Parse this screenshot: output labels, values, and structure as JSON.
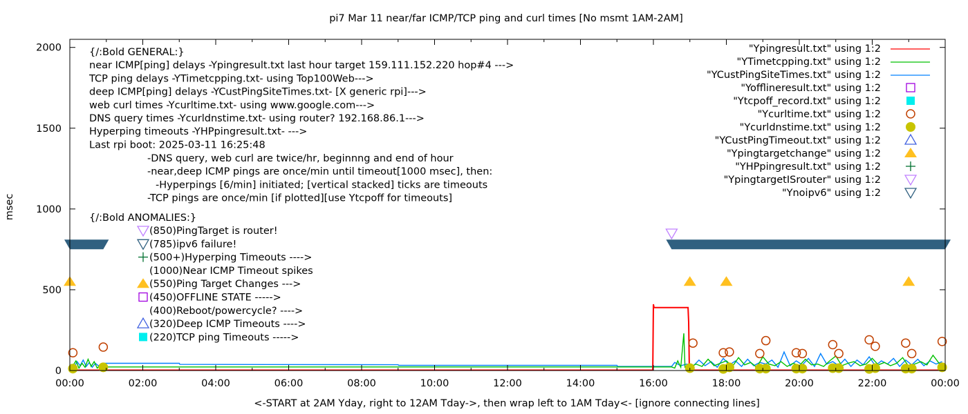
{
  "chart_data": {
    "type": "line",
    "title": "pi7 Mar 11  near/far ICMP/TCP ping and curl times [No msmt 1AM-2AM]",
    "xlabel": "<-START at 2AM Yday, right to 12AM Tday->, then wrap left to 1AM Tday<- [ignore connecting lines]",
    "ylabel": "msec",
    "xlim": [
      "00:00",
      "24:00"
    ],
    "ylim": [
      0,
      2050
    ],
    "grid": false,
    "legend_position": "top-right",
    "x_ticks": [
      "00:00",
      "02:00",
      "04:00",
      "06:00",
      "08:00",
      "10:00",
      "12:00",
      "14:00",
      "16:00",
      "18:00",
      "20:00",
      "22:00",
      "00:00"
    ],
    "y_ticks": [
      0,
      500,
      1000,
      1500,
      2000
    ],
    "series": [
      {
        "name": "\"Ypingresult.txt\" using 1:2",
        "style": "line",
        "color": "#ff0000",
        "points": [
          [
            "00:00",
            2
          ],
          [
            "15:59",
            2
          ],
          [
            "16:00",
            410
          ],
          [
            "16:01",
            390
          ],
          [
            "16:57",
            390
          ],
          [
            "16:58",
            300
          ],
          [
            "16:59",
            30
          ],
          [
            "17:00",
            2
          ],
          [
            "24:00",
            2
          ]
        ]
      },
      {
        "name": "\"YTimetcpping.txt\" using 1:2",
        "style": "line",
        "color": "#00c000",
        "points": [
          [
            "00:05",
            30
          ],
          [
            "00:10",
            60
          ],
          [
            "00:15",
            15
          ],
          [
            "00:20",
            45
          ],
          [
            "00:25",
            20
          ],
          [
            "00:30",
            70
          ],
          [
            "00:35",
            25
          ],
          [
            "00:40",
            55
          ],
          [
            "00:45",
            15
          ],
          [
            "00:50",
            35
          ],
          [
            "00:55",
            22
          ],
          [
            "16:30",
            22
          ],
          [
            "16:35",
            15
          ],
          [
            "16:40",
            60
          ],
          [
            "16:45",
            20
          ],
          [
            "16:50",
            230
          ],
          [
            "16:52",
            20
          ],
          [
            "17:00",
            20
          ],
          [
            "17:10",
            40
          ],
          [
            "17:20",
            25
          ],
          [
            "17:30",
            70
          ],
          [
            "17:40",
            30
          ],
          [
            "17:50",
            45
          ],
          [
            "18:00",
            60
          ],
          [
            "18:10",
            25
          ],
          [
            "18:20",
            80
          ],
          [
            "18:30",
            35
          ],
          [
            "18:40",
            50
          ],
          [
            "18:50",
            20
          ],
          [
            "19:00",
            85
          ],
          [
            "19:10",
            40
          ],
          [
            "19:20",
            30
          ],
          [
            "19:30",
            55
          ],
          [
            "19:40",
            25
          ],
          [
            "19:50",
            45
          ],
          [
            "20:00",
            30
          ],
          [
            "20:10",
            70
          ],
          [
            "20:20",
            35
          ],
          [
            "20:30",
            40
          ],
          [
            "20:40",
            25
          ],
          [
            "20:50",
            60
          ],
          [
            "21:00",
            90
          ],
          [
            "21:10",
            30
          ],
          [
            "21:20",
            45
          ],
          [
            "21:30",
            55
          ],
          [
            "21:40",
            30
          ],
          [
            "21:50",
            40
          ],
          [
            "22:00",
            75
          ],
          [
            "22:10",
            35
          ],
          [
            "22:20",
            50
          ],
          [
            "22:30",
            30
          ],
          [
            "22:40",
            45
          ],
          [
            "22:50",
            80
          ],
          [
            "23:00",
            25
          ],
          [
            "23:10",
            40
          ],
          [
            "23:20",
            55
          ],
          [
            "23:30",
            35
          ],
          [
            "23:40",
            95
          ],
          [
            "23:50",
            45
          ],
          [
            "24:00",
            30
          ]
        ]
      },
      {
        "name": "\"YCustPingSiteTimes.txt\" using 1:2",
        "style": "line",
        "color": "#0080ff",
        "points": [
          [
            "00:02",
            40
          ],
          [
            "00:07",
            20
          ],
          [
            "00:12",
            55
          ],
          [
            "00:17",
            30
          ],
          [
            "00:22",
            65
          ],
          [
            "00:27",
            25
          ],
          [
            "00:32",
            50
          ],
          [
            "00:37",
            20
          ],
          [
            "00:42",
            45
          ],
          [
            "00:47",
            30
          ],
          [
            "00:52",
            40
          ],
          [
            "00:55",
            45
          ],
          [
            "03:00",
            45
          ],
          [
            "03:01",
            38
          ],
          [
            "09:00",
            36
          ],
          [
            "09:01",
            32
          ],
          [
            "15:00",
            32
          ],
          [
            "15:01",
            25
          ],
          [
            "16:30",
            25
          ],
          [
            "16:35",
            50
          ],
          [
            "16:45",
            30
          ],
          [
            "16:55",
            40
          ],
          [
            "17:05",
            25
          ],
          [
            "17:15",
            65
          ],
          [
            "17:25",
            30
          ],
          [
            "17:35",
            55
          ],
          [
            "17:45",
            20
          ],
          [
            "17:55",
            75
          ],
          [
            "18:05",
            35
          ],
          [
            "18:15",
            60
          ],
          [
            "18:25",
            25
          ],
          [
            "18:35",
            70
          ],
          [
            "18:45",
            30
          ],
          [
            "18:55",
            50
          ],
          [
            "19:05",
            40
          ],
          [
            "19:15",
            65
          ],
          [
            "19:25",
            20
          ],
          [
            "19:35",
            115
          ],
          [
            "19:45",
            30
          ],
          [
            "19:55",
            60
          ],
          [
            "20:05",
            35
          ],
          [
            "20:15",
            75
          ],
          [
            "20:25",
            25
          ],
          [
            "20:35",
            105
          ],
          [
            "20:45",
            40
          ],
          [
            "20:55",
            55
          ],
          [
            "21:05",
            30
          ],
          [
            "21:15",
            70
          ],
          [
            "21:25",
            25
          ],
          [
            "21:35",
            65
          ],
          [
            "21:45",
            35
          ],
          [
            "21:55",
            85
          ],
          [
            "22:05",
            30
          ],
          [
            "22:15",
            60
          ],
          [
            "22:25",
            40
          ],
          [
            "22:35",
            75
          ],
          [
            "22:45",
            25
          ],
          [
            "22:55",
            65
          ],
          [
            "23:05",
            35
          ],
          [
            "23:15",
            70
          ],
          [
            "23:25",
            30
          ],
          [
            "23:35",
            60
          ],
          [
            "23:45",
            40
          ],
          [
            "23:55",
            55
          ]
        ]
      },
      {
        "name": "\"Yofflineresult.txt\" using 1:2",
        "style": "open-square",
        "color": "#a000e0",
        "points": []
      },
      {
        "name": "\"Ytcpoff_record.txt\" using 1:2",
        "style": "filled-square",
        "color": "#00eeee",
        "points": []
      },
      {
        "name": "\"Ycurltime.txt\" using 1:2",
        "style": "open-circle",
        "color": "#c04000",
        "points": [
          [
            "00:05",
            110
          ],
          [
            "00:55",
            145
          ],
          [
            "17:05",
            170
          ],
          [
            "17:55",
            110
          ],
          [
            "18:05",
            115
          ],
          [
            "18:55",
            105
          ],
          [
            "19:05",
            185
          ],
          [
            "19:55",
            110
          ],
          [
            "20:05",
            105
          ],
          [
            "20:55",
            160
          ],
          [
            "21:05",
            105
          ],
          [
            "21:55",
            190
          ],
          [
            "22:05",
            150
          ],
          [
            "22:55",
            170
          ],
          [
            "23:05",
            105
          ],
          [
            "23:55",
            180
          ]
        ]
      },
      {
        "name": "\"Ycurldnstime.txt\" using 1:2",
        "style": "filled-circle",
        "color": "#c8c400",
        "points": [
          [
            "00:05",
            12
          ],
          [
            "00:55",
            20
          ],
          [
            "17:00",
            15
          ],
          [
            "17:55",
            10
          ],
          [
            "18:05",
            20
          ],
          [
            "18:55",
            12
          ],
          [
            "19:05",
            12
          ],
          [
            "19:55",
            12
          ],
          [
            "20:05",
            12
          ],
          [
            "20:55",
            15
          ],
          [
            "21:05",
            15
          ],
          [
            "21:55",
            10
          ],
          [
            "22:05",
            15
          ],
          [
            "22:55",
            12
          ],
          [
            "23:05",
            12
          ],
          [
            "23:55",
            20
          ]
        ]
      },
      {
        "name": "\"YCustPingTimeout.txt\" using 1:2",
        "style": "open-triangle-up",
        "color": "#4060e0",
        "points": []
      },
      {
        "name": "\"Ypingtargetchange\" using 1:2",
        "style": "filled-triangle-up",
        "color": "#ffc020",
        "points": [
          [
            "00:00",
            550
          ],
          [
            "17:00",
            550
          ],
          [
            "18:00",
            550
          ],
          [
            "23:00",
            550
          ]
        ]
      },
      {
        "name": "\"YHPpingresult.txt\" using 1:2",
        "style": "plus",
        "color": "#007030",
        "points": []
      },
      {
        "name": "\"YpingtargetISrouter\" using 1:2",
        "style": "open-triangle-down",
        "color": "#c080ff",
        "points": [
          [
            "16:30",
            850
          ]
        ]
      },
      {
        "name": "\"Ynoipv6\" using 1:2",
        "style": "open-triangle-down",
        "color": "#306080",
        "ranges": [
          {
            "from": "00:00",
            "to": "00:55",
            "value": 785
          },
          {
            "from": "16:30",
            "to": "24:00",
            "value": 785
          }
        ]
      }
    ]
  },
  "notes": {
    "general": [
      "{/:Bold GENERAL:}",
      "near ICMP[ping] delays -Ypingresult.txt last hour target 159.111.152.220 hop#4 --->",
      "TCP ping delays -YTimetcpping.txt- using Top100Web--->",
      "deep ICMP[ping] delays -YCustPingSiteTimes.txt- [X generic rpi]--->",
      "web curl times -Ycurltime.txt- using www.google.com--->",
      "DNS query times -Ycurldnstime.txt- using router? 192.168.86.1--->",
      "Hyperping timeouts -YHPpingresult.txt- --->",
      "Last rpi boot: 2025-03-11 16:25:48"
    ],
    "details": [
      "-DNS query, web curl are twice/hr, beginnng and end of hour",
      "-near,deep ICMP pings are once/min until timeout[1000 msec], then:",
      " -Hyperpings [6/min] initiated; [vertical stacked] ticks are timeouts",
      "-TCP pings are once/min [if plotted][use Ytcpoff for timeouts]"
    ],
    "anomalies_header": "{/:Bold ANOMALIES:}",
    "anomalies": [
      {
        "label": "(850)PingTarget is router!",
        "marker": "open-triangle-down",
        "color": "#c080ff"
      },
      {
        "label": "(785)ipv6 failure!",
        "marker": "open-triangle-down",
        "color": "#306080"
      },
      {
        "label": "(500+)Hyperping Timeouts ---->",
        "marker": "plus",
        "color": "#007030"
      },
      {
        "label": "(1000)Near ICMP Timeout spikes",
        "marker": "none",
        "color": ""
      },
      {
        "label": "(550)Ping Target Changes --->",
        "marker": "filled-triangle-up",
        "color": "#ffc020"
      },
      {
        "label": "(450)OFFLINE STATE ----->",
        "marker": "open-square",
        "color": "#a000e0"
      },
      {
        "label": "(400)Reboot/powercycle? ---->",
        "marker": "none",
        "color": ""
      },
      {
        "label": "(320)Deep ICMP Timeouts ---->",
        "marker": "open-triangle-up",
        "color": "#4060e0"
      },
      {
        "label": "(220)TCP ping Timeouts ----->",
        "marker": "filled-square",
        "color": "#00eeee"
      }
    ]
  }
}
